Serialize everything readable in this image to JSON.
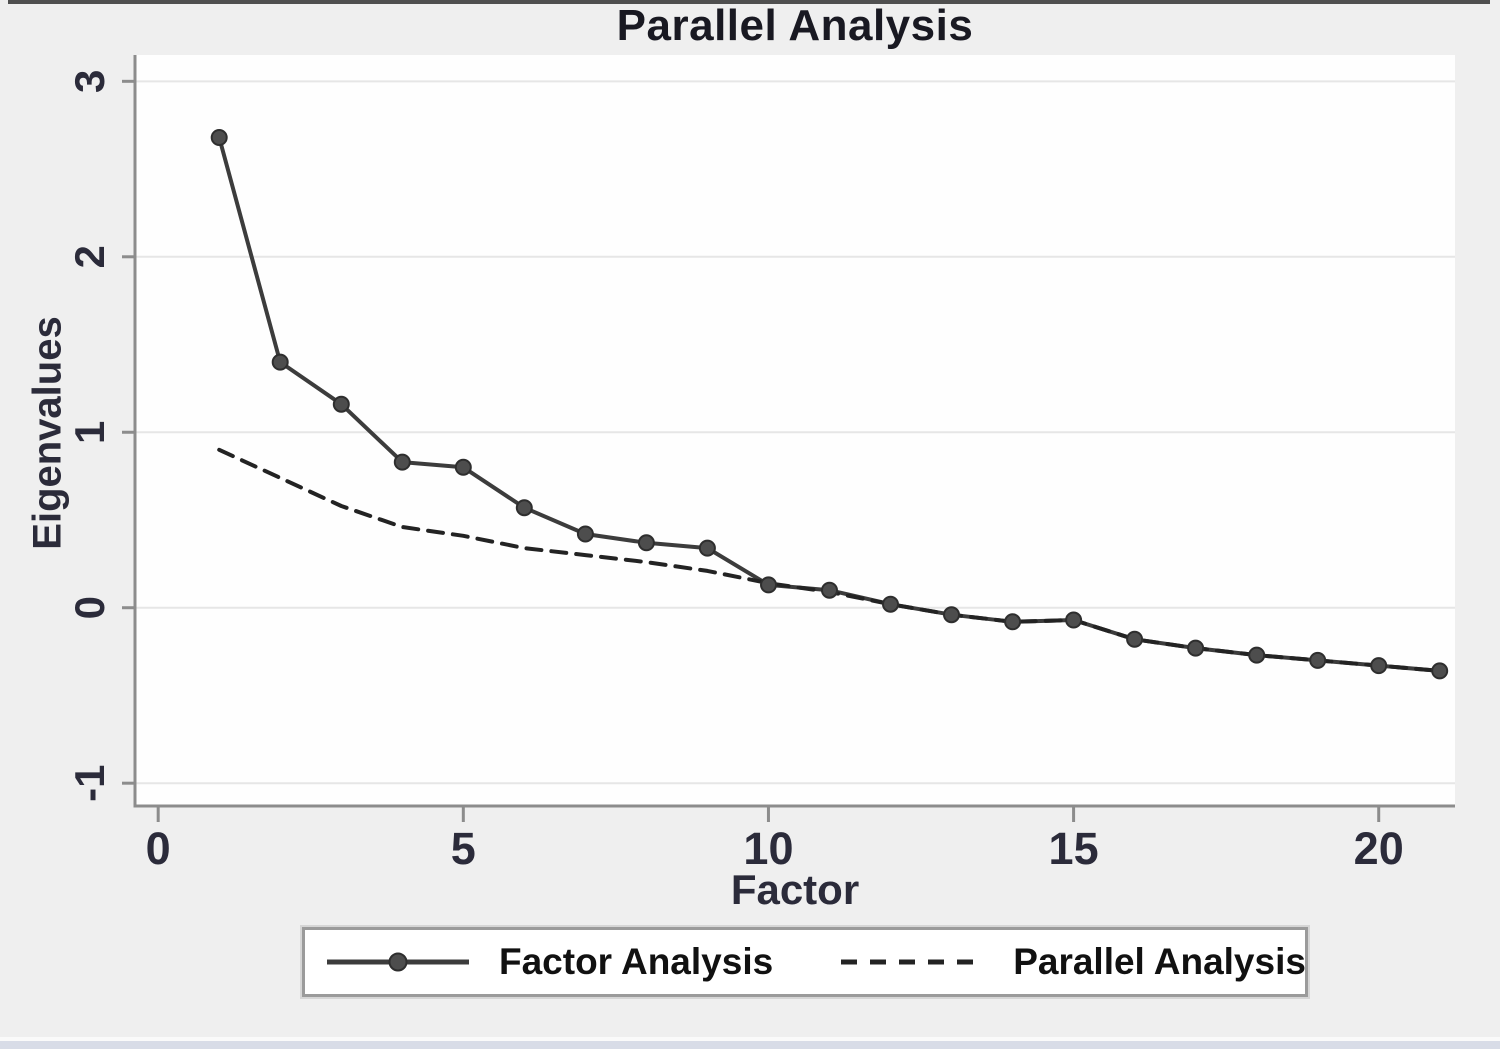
{
  "figure": {
    "title": "Parallel Analysis"
  },
  "chart_data": {
    "type": "line",
    "title": "Parallel Analysis",
    "xlabel": "Factor",
    "ylabel": "Eigenvalues",
    "x": [
      1,
      2,
      3,
      4,
      5,
      6,
      7,
      8,
      9,
      10,
      11,
      12,
      13,
      14,
      15,
      16,
      17,
      18,
      19,
      20,
      21
    ],
    "series": [
      {
        "name": "Factor Analysis",
        "line_style": "solid",
        "marker": "circle",
        "color": "#3c3c3c",
        "values": [
          2.68,
          1.4,
          1.16,
          0.83,
          0.8,
          0.57,
          0.42,
          0.37,
          0.34,
          0.13,
          0.1,
          0.02,
          -0.04,
          -0.08,
          -0.07,
          -0.18,
          -0.23,
          -0.27,
          -0.3,
          -0.33,
          -0.36
        ]
      },
      {
        "name": "Parallel Analysis",
        "line_style": "dashed",
        "marker": "none",
        "color": "#232323",
        "values": [
          0.9,
          0.74,
          0.58,
          0.46,
          0.41,
          0.34,
          0.3,
          0.26,
          0.21,
          0.14,
          0.09,
          0.02,
          -0.04,
          -0.08,
          -0.07,
          -0.18,
          -0.23,
          -0.27,
          -0.3,
          -0.33,
          -0.36
        ]
      }
    ],
    "x_ticks": [
      0,
      5,
      10,
      15,
      20
    ],
    "y_ticks": [
      -1,
      0,
      1,
      2,
      3
    ],
    "xlim": [
      -0.38,
      21.25
    ],
    "ylim": [
      -1.13,
      3.15
    ],
    "grid": "horizontal-only",
    "legend_position": "bottom",
    "colors": {
      "plot_bg": "#fefefe",
      "figure_bg": "#efefef",
      "gridline": "#e6e6e6",
      "axis": "#8c8c8c",
      "tick_label": "#2b2b3a",
      "title": "#191922",
      "marker_fill": "#4d4d4d",
      "marker_stroke": "#2e2e2e",
      "legend_border": "#9b9b9b",
      "legend_bg": "#ffffff",
      "legend_text": "#111111",
      "top_edge": "#4f4f4f",
      "bottom_edge": "#d8dce7"
    }
  }
}
